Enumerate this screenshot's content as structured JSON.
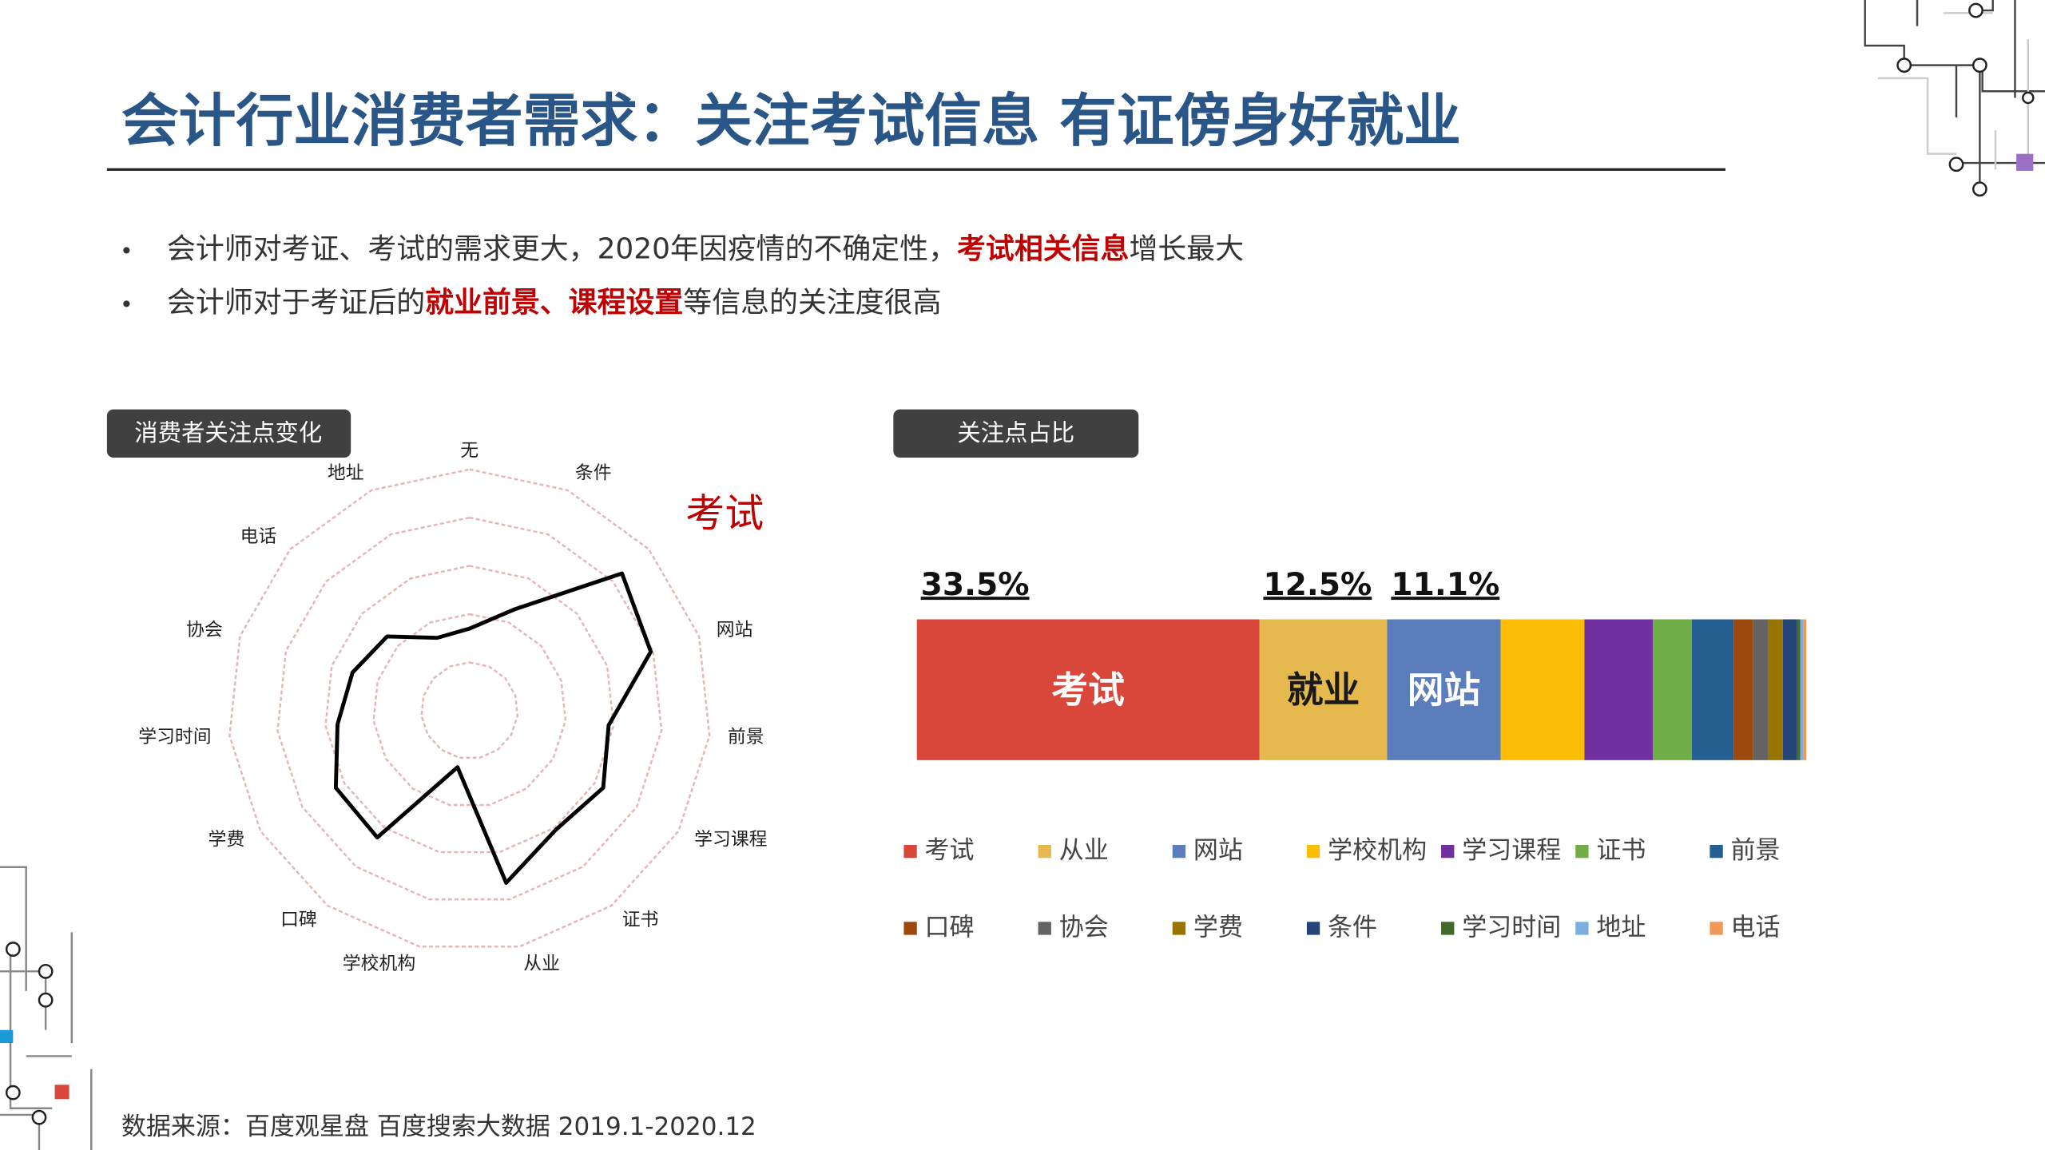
{
  "header": {
    "title": "会计行业消费者需求：关注考试信息 有证傍身好就业"
  },
  "bullets": [
    [
      {
        "text": "会计师对考证、考试的需求更大，2020年因疫情的不确定性，",
        "emphasis": false
      },
      {
        "text": "考试相关信息",
        "emphasis": true
      },
      {
        "text": "增长最大",
        "emphasis": false
      }
    ],
    [
      {
        "text": "会计师对于考证后的",
        "emphasis": false
      },
      {
        "text": "就业前景、课程设置",
        "emphasis": true
      },
      {
        "text": "等信息的关注度很高",
        "emphasis": false
      }
    ]
  ],
  "emphasis_color": "#c00000",
  "chart_data": [
    {
      "type": "radar",
      "title": "消费者关注点变化",
      "categories": [
        "无",
        "条件",
        "考试",
        "网站",
        "前景",
        "学习课程",
        "证书",
        "从业",
        "学校机构",
        "口碑",
        "学费",
        "学习时间",
        "协会",
        "电话",
        "地址"
      ],
      "values": [
        34,
        46,
        85,
        79,
        58,
        64,
        61,
        73,
        24,
        65,
        64,
        55,
        51,
        46,
        33
      ],
      "rlim": [
        0,
        100
      ],
      "rticks": [
        20,
        40,
        60,
        80,
        100
      ],
      "color": "#000000",
      "grid_color": "#e8b4b4",
      "highlight_index": 2,
      "highlight_color": "#c00000"
    },
    {
      "type": "stacked_bar",
      "title": "关注点占比",
      "series": [
        {
          "name": "考试",
          "color": "#d9463a",
          "values": [
            33.5
          ],
          "value_labels": [
            "33.5%"
          ],
          "bar_label": "考试",
          "bar_label_color": "#ffffff"
        },
        {
          "name": "从业",
          "color": "#e6b94f",
          "values": [
            12.5
          ],
          "value_labels": [
            "12.5%"
          ],
          "bar_label": "就业",
          "bar_label_color": "#1a1a1a"
        },
        {
          "name": "网站",
          "color": "#5b7dbb",
          "values": [
            11.1
          ],
          "value_labels": [
            "11.1%"
          ],
          "bar_label": "网站",
          "bar_label_color": "#ffffff"
        },
        {
          "name": "学校机构",
          "color": "#fbbe06",
          "values": [
            8.2
          ]
        },
        {
          "name": "学习课程",
          "color": "#7030a0",
          "values": [
            6.7
          ]
        },
        {
          "name": "证书",
          "color": "#70ad47",
          "values": [
            3.8
          ]
        },
        {
          "name": "前景",
          "color": "#255e91",
          "values": [
            4.1
          ]
        },
        {
          "name": "口碑",
          "color": "#9e480e",
          "values": [
            1.9
          ]
        },
        {
          "name": "协会",
          "color": "#636363",
          "values": [
            1.5
          ]
        },
        {
          "name": "学费",
          "color": "#997300",
          "values": [
            1.4
          ]
        },
        {
          "name": "条件",
          "color": "#264478",
          "values": [
            1.4
          ]
        },
        {
          "name": "学习时间",
          "color": "#43682b",
          "values": [
            0.3
          ]
        },
        {
          "name": "地址",
          "color": "#7cafdd",
          "values": [
            0.3
          ]
        },
        {
          "name": "电话",
          "color": "#f1975a",
          "values": [
            0.3
          ]
        }
      ]
    }
  ],
  "footer": {
    "source": "数据来源：百度观星盘 百度搜索大数据 2019.1-2020.12"
  }
}
